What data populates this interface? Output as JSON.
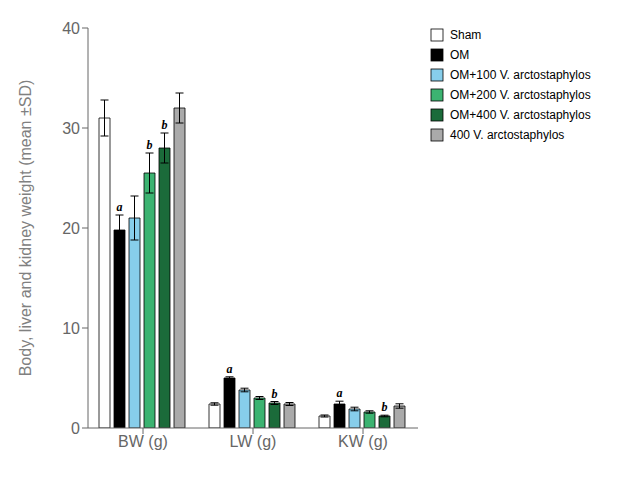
{
  "chart_data": {
    "type": "bar",
    "categories": [
      "BW (g)",
      "LW (g)",
      "KW (g)"
    ],
    "ylabel": "Body, liver and kidney weight (mean ±SD)",
    "ylim": [
      0,
      40
    ],
    "yticks": [
      0,
      10,
      20,
      30,
      40
    ],
    "grid": false,
    "legend": "right",
    "series": [
      {
        "name": "Sham",
        "color": "#FFFFFF",
        "values": [
          31.0,
          2.4,
          1.2
        ],
        "errors": [
          1.8,
          0.12,
          0.1
        ]
      },
      {
        "name": "OM",
        "color": "#000000",
        "values": [
          19.8,
          5.0,
          2.4
        ],
        "errors": [
          1.5,
          0.12,
          0.28
        ],
        "annotations": [
          "a",
          "a",
          "a"
        ]
      },
      {
        "name": "OM+100 V. arctostaphylos",
        "color": "#87CEEB",
        "values": [
          21.0,
          3.8,
          1.9
        ],
        "errors": [
          2.2,
          0.18,
          0.18
        ]
      },
      {
        "name": "OM+200 V. arctostaphylos",
        "color": "#3CB371",
        "values": [
          25.5,
          3.0,
          1.6
        ],
        "errors": [
          2.0,
          0.15,
          0.12
        ],
        "annotations": [
          "b",
          null,
          null
        ]
      },
      {
        "name": "OM+400 V. arctostaphylos",
        "color": "#1B6B3A",
        "values": [
          28.0,
          2.5,
          1.2
        ],
        "errors": [
          1.5,
          0.15,
          0.08
        ],
        "annotations": [
          "b",
          "b",
          "b"
        ]
      },
      {
        "name": "400 V. arctostaphylos",
        "color": "#AAAAAA",
        "values": [
          32.0,
          2.4,
          2.2
        ],
        "errors": [
          1.5,
          0.15,
          0.22
        ]
      }
    ]
  }
}
